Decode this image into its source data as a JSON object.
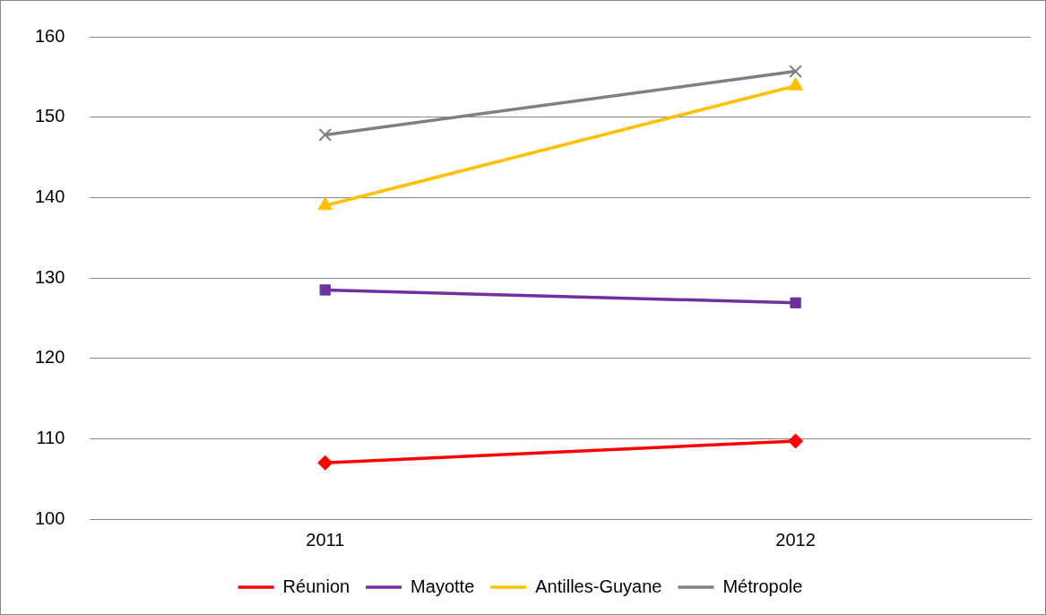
{
  "chart_data": {
    "type": "line",
    "categories": [
      "2011",
      "2012"
    ],
    "series": [
      {
        "name": "Réunion",
        "color": "#ff0000",
        "marker": "diamond",
        "values": [
          107,
          109.7
        ]
      },
      {
        "name": "Mayotte",
        "color": "#7030a0",
        "marker": "square",
        "values": [
          128.5,
          126.9
        ]
      },
      {
        "name": "Antilles-Guyane",
        "color": "#ffc000",
        "marker": "triangle",
        "values": [
          139,
          153.9
        ]
      },
      {
        "name": "Métropole",
        "color": "#808080",
        "marker": "cross",
        "values": [
          147.8,
          155.7
        ]
      }
    ],
    "ylim": [
      100,
      160
    ],
    "yticks": [
      100,
      110,
      120,
      130,
      140,
      150,
      160
    ],
    "grid": "y",
    "legend": "bottom",
    "line_style": "solid"
  }
}
